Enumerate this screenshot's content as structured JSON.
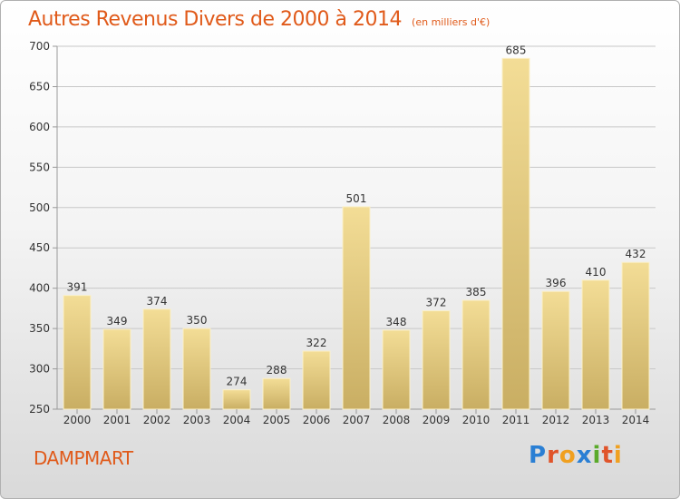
{
  "header": {
    "title": "Autres Revenus Divers de 2000 à 2014",
    "subtitle": "(en milliers d'€)"
  },
  "footer": {
    "commune": "DAMPMART",
    "brand": "Proxiti",
    "brand_letters": [
      {
        "char": "P",
        "color": "#2a7fd4"
      },
      {
        "char": "r",
        "color": "#e0542a"
      },
      {
        "char": "o",
        "color": "#f0a020"
      },
      {
        "char": "x",
        "color": "#2a7fd4"
      },
      {
        "char": "i",
        "color": "#5aaa2a"
      },
      {
        "char": "t",
        "color": "#e0542a"
      },
      {
        "char": "i",
        "color": "#f0a020"
      }
    ]
  },
  "colors": {
    "accent": "#e05a1a",
    "bar_top": "#f3dd96",
    "bar_bottom": "#c9ae63",
    "grid": "#c8c8c8",
    "axis_text": "#333333"
  },
  "chart_data": {
    "type": "bar",
    "categories": [
      "2000",
      "2001",
      "2002",
      "2003",
      "2004",
      "2005",
      "2006",
      "2007",
      "2008",
      "2009",
      "2010",
      "2011",
      "2012",
      "2013",
      "2014"
    ],
    "values": [
      391,
      349,
      374,
      350,
      274,
      288,
      322,
      501,
      348,
      372,
      385,
      685,
      396,
      410,
      432
    ],
    "ylim": [
      250,
      700
    ],
    "yticks": [
      250,
      300,
      350,
      400,
      450,
      500,
      550,
      600,
      650,
      700
    ],
    "grid": true,
    "data_labels": true
  }
}
